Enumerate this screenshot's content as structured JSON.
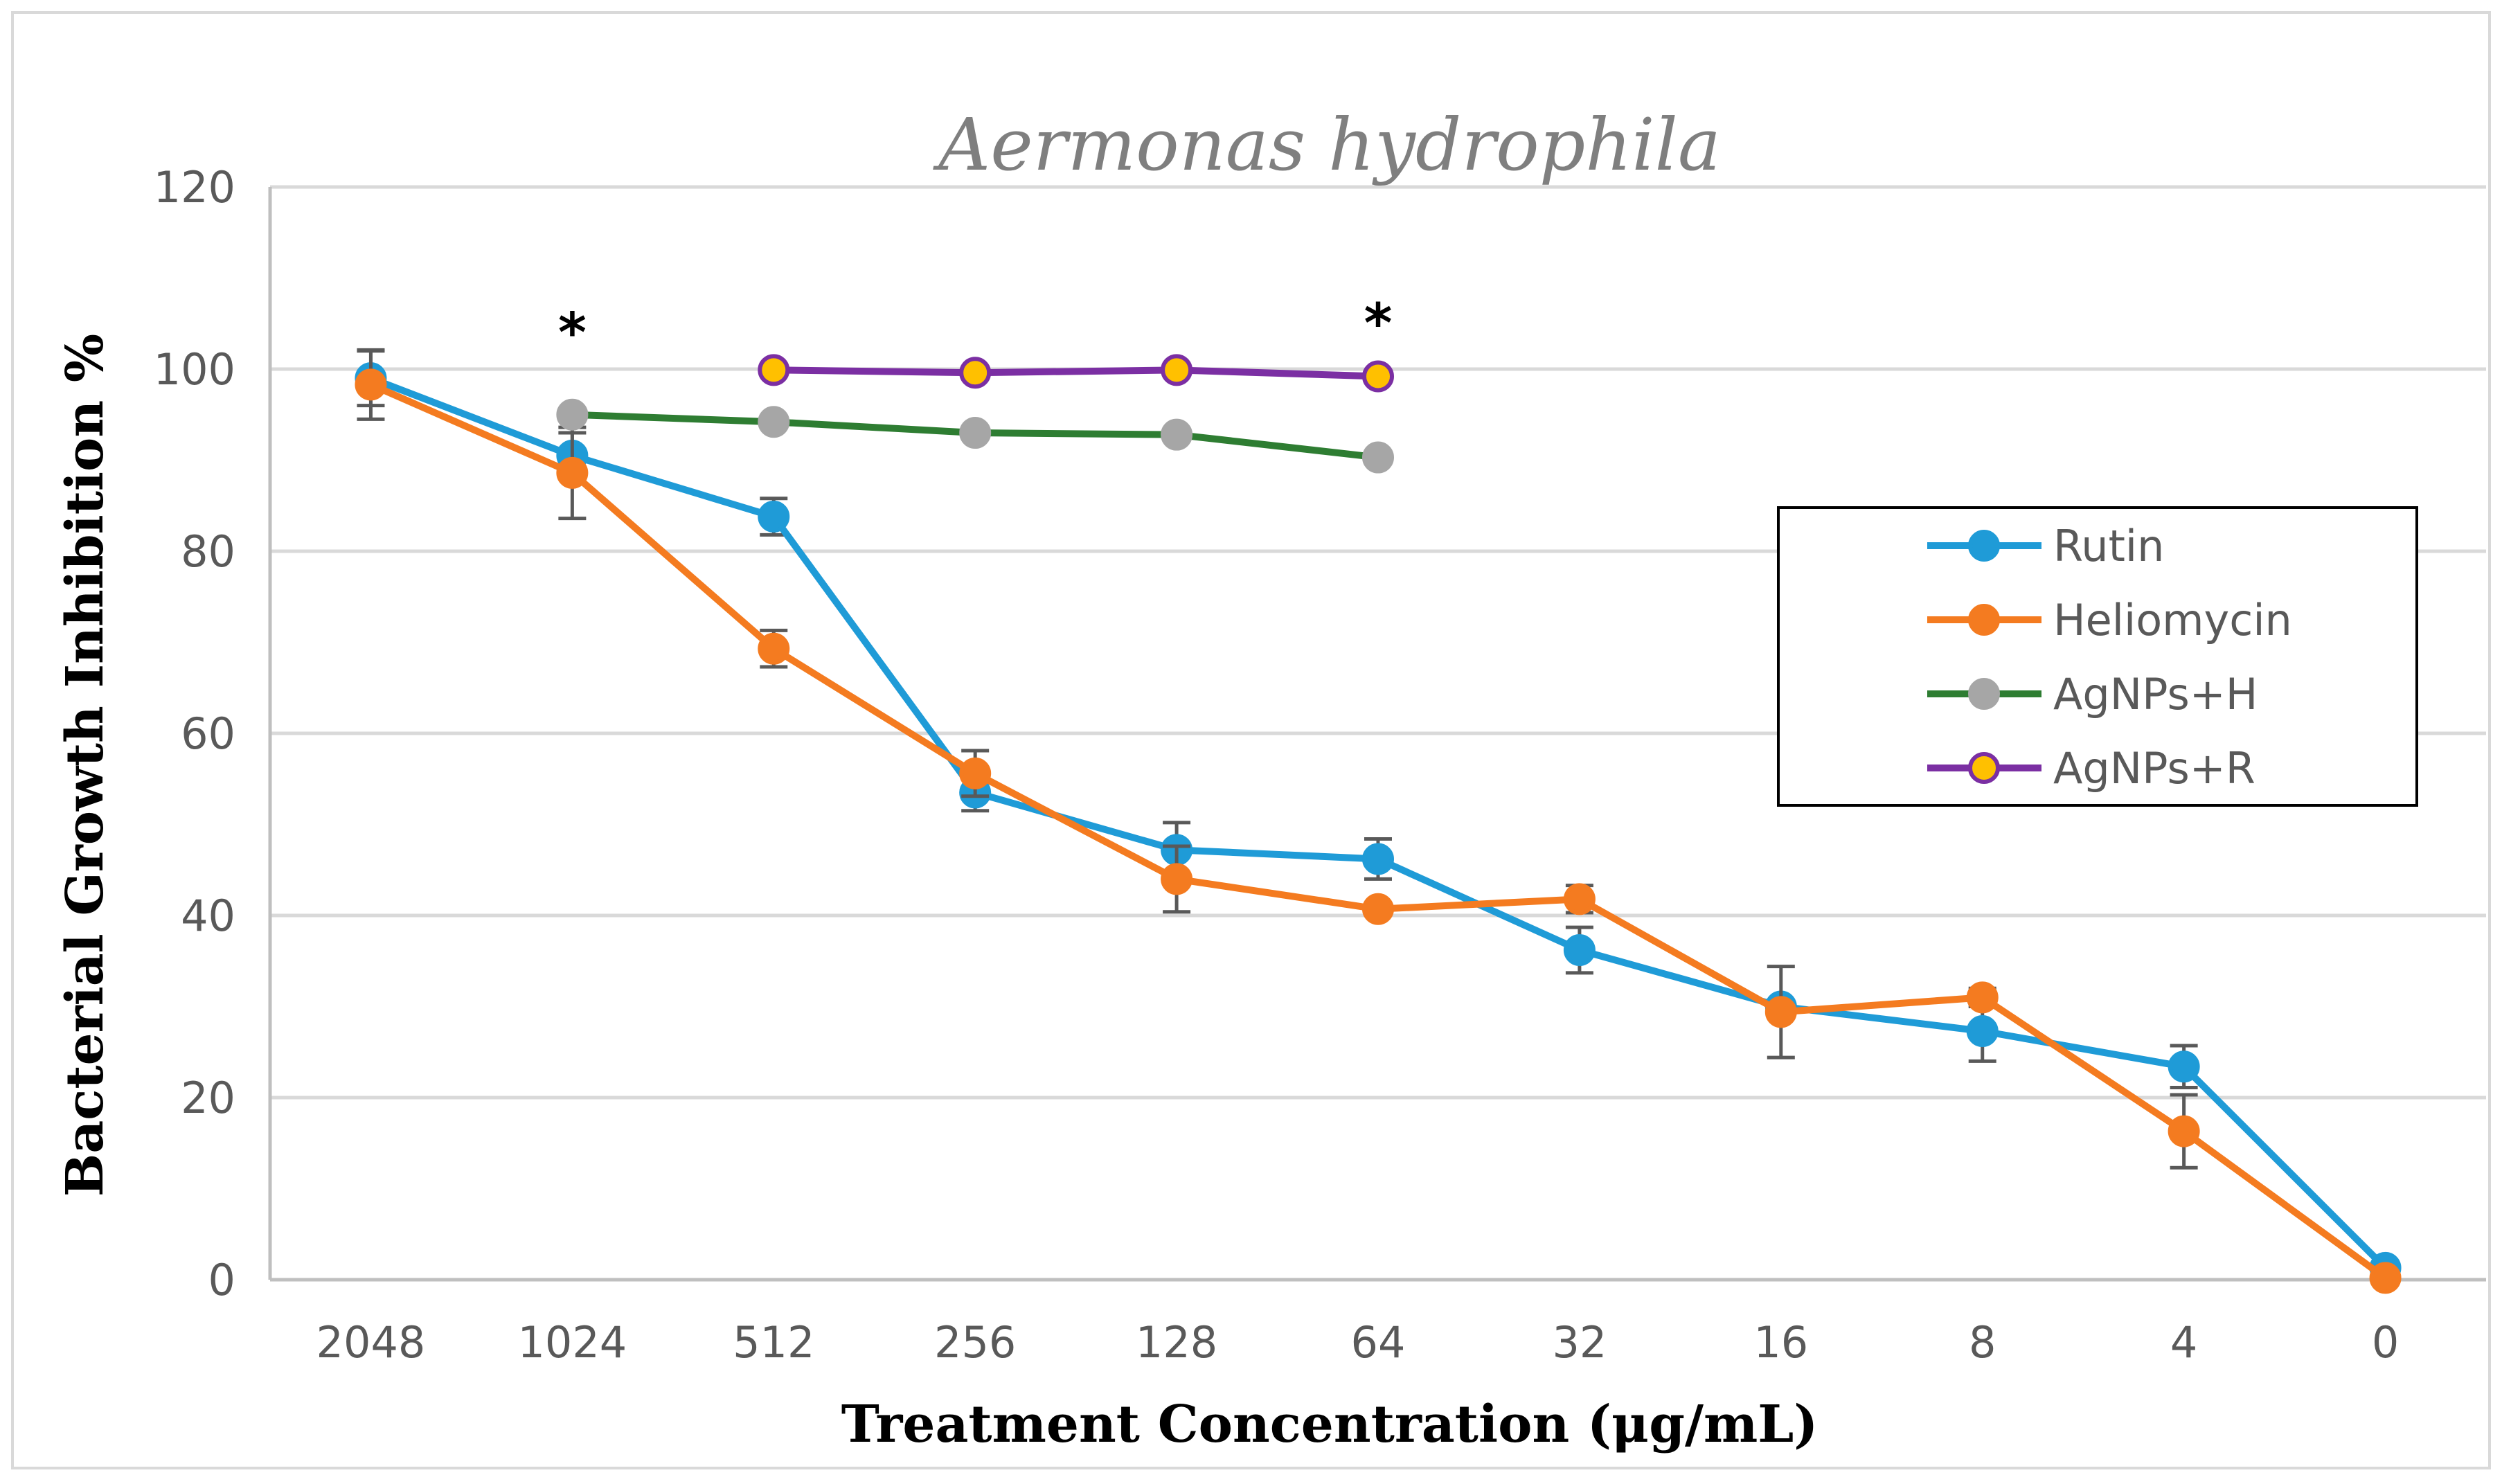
{
  "chart_data": {
    "type": "line",
    "title": "Aermonas hydrophila",
    "xlabel": "Treatment Concentration (μg/mL)",
    "ylabel": "Bacterial Growth Inhibition %",
    "categories": [
      "2048",
      "1024",
      "512",
      "256",
      "128",
      "64",
      "32",
      "16",
      "8",
      "4",
      "0"
    ],
    "ylim": [
      0,
      120
    ],
    "yticks": [
      0,
      20,
      40,
      60,
      80,
      100,
      120
    ],
    "grid": true,
    "legend_position": "right",
    "annotations": [
      {
        "text": "*",
        "category": "1024",
        "y": 105
      },
      {
        "text": "*",
        "category": "64",
        "y": 106
      }
    ],
    "series": [
      {
        "name": "Rutin",
        "line_color": "#1f9bd7",
        "marker_fill": "#1f9bd7",
        "marker_edge": "#1f9bd7",
        "values": [
          99,
          90.5,
          83.8,
          53.5,
          47.2,
          46.2,
          36.2,
          30,
          27.3,
          23.4,
          1.3
        ],
        "errors": [
          3,
          2.5,
          2,
          2,
          3,
          2.2,
          2.5,
          0,
          3.3,
          2.3,
          0
        ]
      },
      {
        "name": "Heliomycin",
        "line_color": "#f47b20",
        "marker_fill": "#f47b20",
        "marker_edge": "#f47b20",
        "values": [
          98.3,
          88.6,
          69.3,
          55.6,
          44,
          40.7,
          41.8,
          29.4,
          31,
          16.3,
          0.2
        ],
        "errors": [
          3.8,
          5,
          2,
          2.5,
          3.6,
          0,
          1.5,
          5,
          1,
          4,
          0
        ]
      },
      {
        "name": "AgNPs+H",
        "line_color": "#2e7d32",
        "marker_fill": "#a6a6a6",
        "marker_edge": "#a6a6a6",
        "values": [
          null,
          95,
          94.2,
          93,
          92.8,
          90.3,
          null,
          null,
          null,
          null,
          null
        ],
        "errors": [
          0,
          0,
          0,
          0,
          0,
          0,
          0,
          0,
          0,
          0,
          0
        ]
      },
      {
        "name": "AgNPs+R",
        "line_color": "#7b2fa3",
        "marker_fill": "#ffc000",
        "marker_edge": "#7b2fa3",
        "values": [
          null,
          null,
          99.9,
          99.6,
          99.9,
          99.2,
          null,
          null,
          null,
          null,
          null
        ],
        "errors": [
          0,
          0,
          0,
          0,
          0,
          0,
          0,
          0,
          0,
          0,
          0
        ]
      }
    ]
  }
}
